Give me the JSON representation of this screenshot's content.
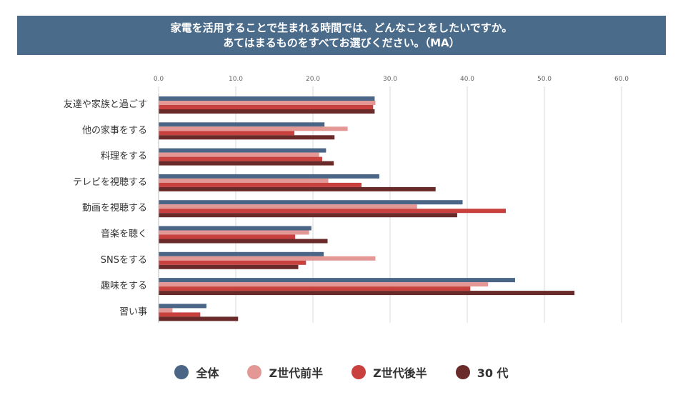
{
  "header": {
    "title_line1": "家電を活用することで生まれる時間では、どんなことをしたいですか。",
    "title_line2": "あてはまるものをすべてお選びください。（MA）"
  },
  "colors": {
    "title_bg": "#4a6b8a",
    "series": [
      "#4a6585",
      "#e39896",
      "#c9413f",
      "#6b2a2a"
    ]
  },
  "chart_data": {
    "type": "bar",
    "orientation": "horizontal",
    "categories": [
      "友達や家族と過ごす",
      "他の家事をする",
      "料理をする",
      "テレビを視聴する",
      "動画を視聴する",
      "音楽を聴く",
      "SNSをする",
      "趣味をする",
      "習い事"
    ],
    "series": [
      {
        "name": "全体",
        "values": [
          28.0,
          21.5,
          21.7,
          28.6,
          39.4,
          19.8,
          21.4,
          46.2,
          6.2
        ]
      },
      {
        "name": "Z世代前半",
        "values": [
          28.1,
          24.5,
          20.8,
          22.0,
          33.5,
          19.5,
          28.1,
          42.7,
          1.8
        ]
      },
      {
        "name": "Z世代後半",
        "values": [
          27.8,
          17.6,
          21.2,
          26.3,
          45.0,
          17.7,
          19.1,
          40.4,
          5.4
        ]
      },
      {
        "name": "30 代",
        "values": [
          28.0,
          22.8,
          22.7,
          35.9,
          38.7,
          21.9,
          18.1,
          53.9,
          10.3
        ]
      }
    ],
    "xlim": [
      0,
      60
    ],
    "xticks": [
      "0.0",
      "10.0",
      "20.0",
      "30.0",
      "40.0",
      "50.0",
      "60.0"
    ],
    "grid": true,
    "legend_position": "bottom"
  }
}
